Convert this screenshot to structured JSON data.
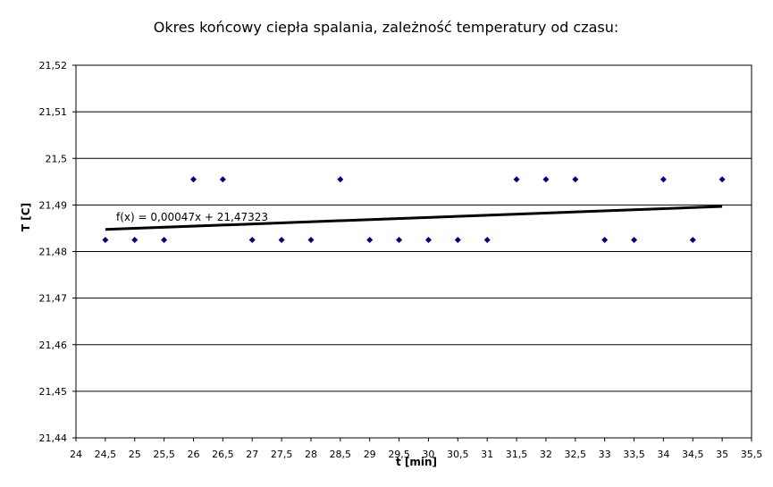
{
  "chart_data": {
    "type": "scatter",
    "title": "Okres końcowy ciepła spalania, zależność temperatury od czasu:",
    "xlabel": "t [min]",
    "ylabel": "T [C]",
    "xlim": [
      24,
      35.5
    ],
    "ylim": [
      21.44,
      21.52
    ],
    "x_ticks": [
      "24",
      "24,5",
      "25",
      "25,5",
      "26",
      "26,5",
      "27",
      "27,5",
      "28",
      "28,5",
      "29",
      "29,5",
      "30",
      "30,5",
      "31",
      "31,5",
      "32",
      "32,5",
      "33",
      "33,5",
      "34",
      "34,5",
      "35",
      "35,5"
    ],
    "y_ticks": [
      "21,44",
      "21,45",
      "21,46",
      "21,47",
      "21,48",
      "21,49",
      "21,5",
      "21,51",
      "21,52"
    ],
    "grid": "horizontal",
    "marker_color": "#000080",
    "trend_color": "#000000",
    "series": [
      {
        "x": [
          24.5,
          25,
          25.5,
          26,
          26.5,
          27,
          27.5,
          28,
          28.5,
          29,
          29.5,
          30,
          30.5,
          31,
          31.5,
          32,
          32.5,
          33,
          33.5,
          34,
          34.5,
          35
        ],
        "y": [
          21.4825,
          21.4825,
          21.4825,
          21.4955,
          21.4955,
          21.4825,
          21.4825,
          21.4825,
          21.4955,
          21.4825,
          21.4825,
          21.4825,
          21.4825,
          21.4825,
          21.4955,
          21.4955,
          21.4955,
          21.4825,
          21.4825,
          21.4955,
          21.4825,
          21.4955
        ]
      }
    ],
    "trendline": {
      "equation": "f(x) = 0,00047x + 21,47323",
      "slope": 0.00047,
      "intercept": 21.47323,
      "x_range": [
        24.5,
        35
      ]
    }
  }
}
